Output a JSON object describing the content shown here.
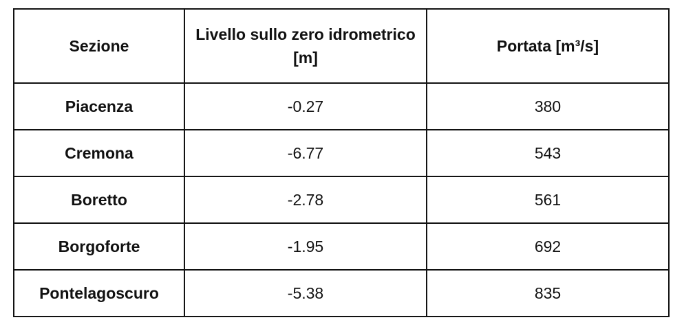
{
  "table": {
    "header": [
      "Sezione",
      "Livello sullo zero idrometrico [m]",
      "Portata [m³/s]"
    ],
    "rows": [
      [
        "Piacenza",
        -0.27,
        380
      ],
      [
        "Cremona",
        -6.77,
        543
      ],
      [
        "Boretto",
        -2.78,
        561
      ],
      [
        "Borgoforte",
        -1.95,
        692
      ],
      [
        "Pontelagoscuro",
        -5.38,
        835
      ]
    ]
  }
}
